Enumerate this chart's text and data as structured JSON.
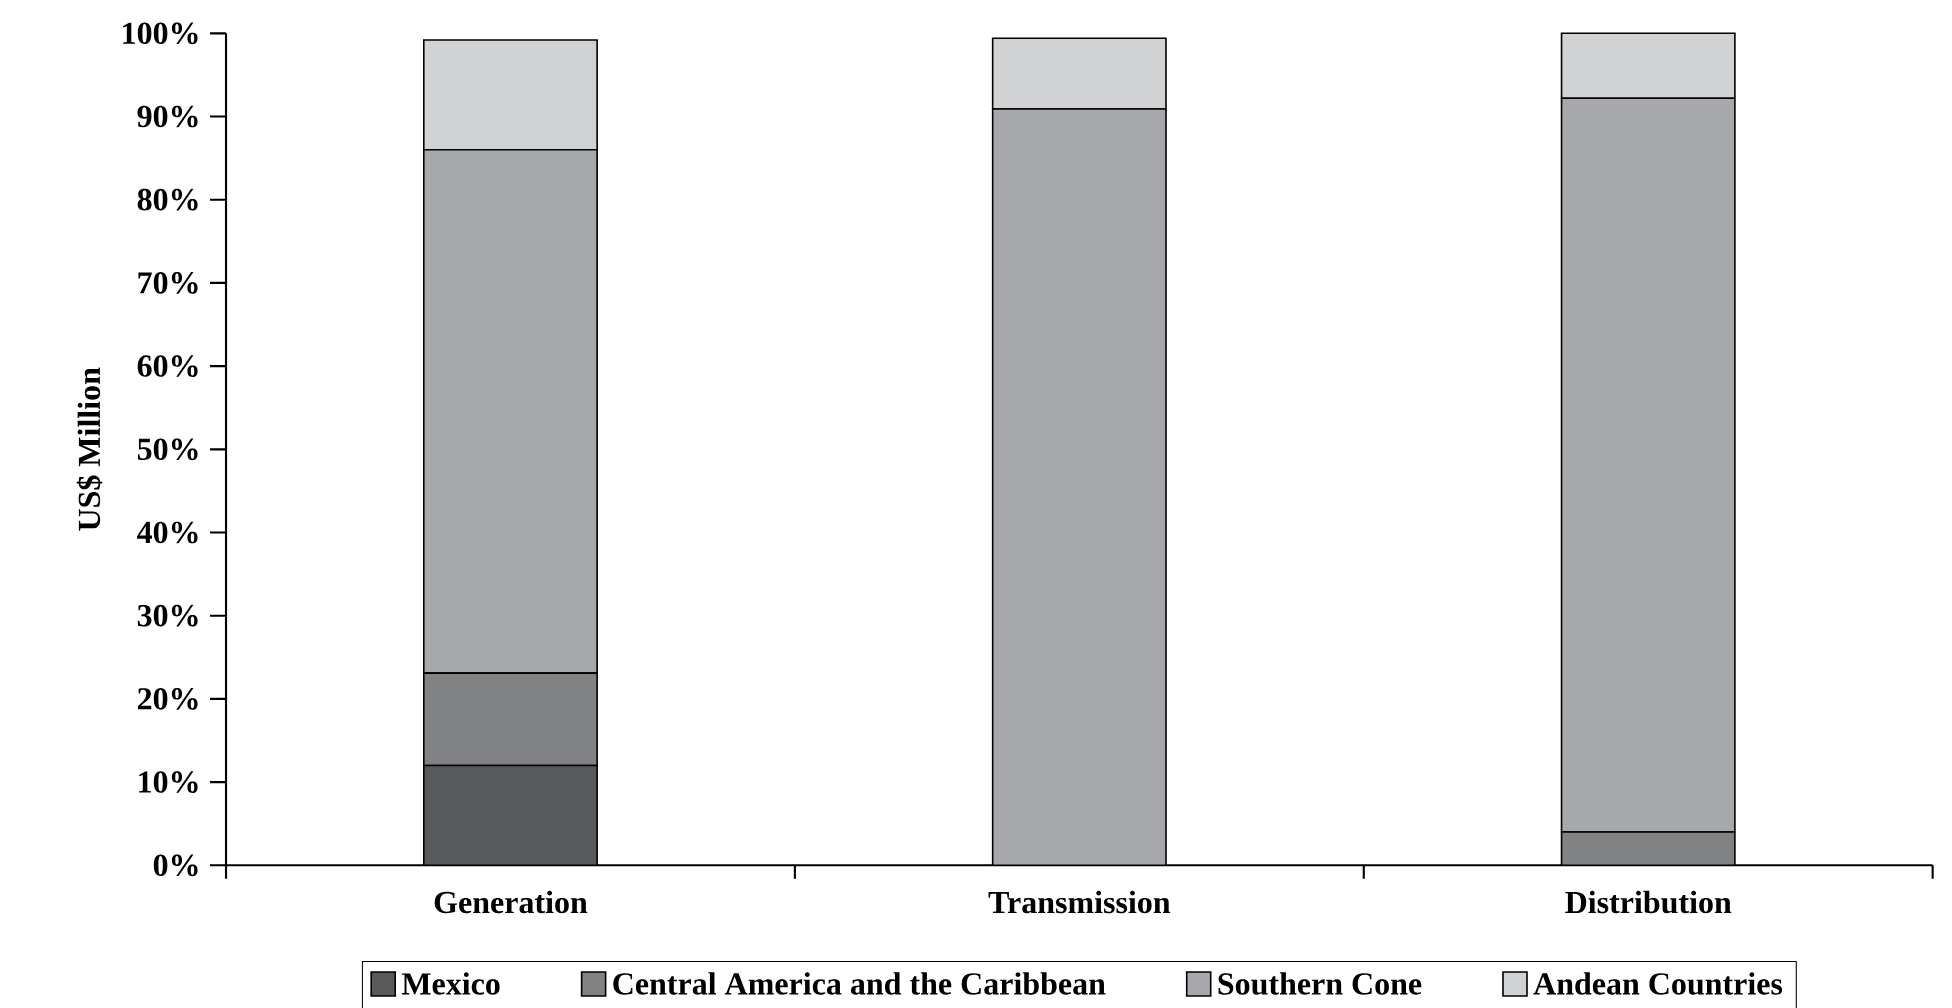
{
  "chart_data": {
    "type": "bar",
    "stacked": true,
    "ylabel": "US$ Million",
    "categories": [
      "Generation",
      "Transmission",
      "Distribution"
    ],
    "series": [
      {
        "name": "Mexico",
        "color": "#58595b",
        "values": [
          12.0,
          0,
          0
        ]
      },
      {
        "name": "Central America and the Caribbean",
        "color": "#818284",
        "values": [
          11.1,
          0,
          4.0
        ]
      },
      {
        "name": "Southern Cone",
        "color": "#a7a8ab",
        "values": [
          62.9,
          90.9,
          88.2
        ]
      },
      {
        "name": "Andean Countries",
        "color": "#d1d2d4",
        "values": [
          13.2,
          8.5,
          7.8
        ]
      }
    ],
    "ylim": [
      0,
      100
    ],
    "yticks": [
      {
        "value": 0,
        "label": "0%"
      },
      {
        "value": 10,
        "label": "10%"
      },
      {
        "value": 20,
        "label": "20%"
      },
      {
        "value": 30,
        "label": "30%"
      },
      {
        "value": 40,
        "label": "40%"
      },
      {
        "value": 50,
        "label": "50%"
      },
      {
        "value": 60,
        "label": "60%"
      },
      {
        "value": 70,
        "label": "70%"
      },
      {
        "value": 80,
        "label": "80%"
      },
      {
        "value": 90,
        "label": "90%"
      },
      {
        "value": 100,
        "label": "100%"
      }
    ],
    "legend": "bottom",
    "grid": false
  }
}
